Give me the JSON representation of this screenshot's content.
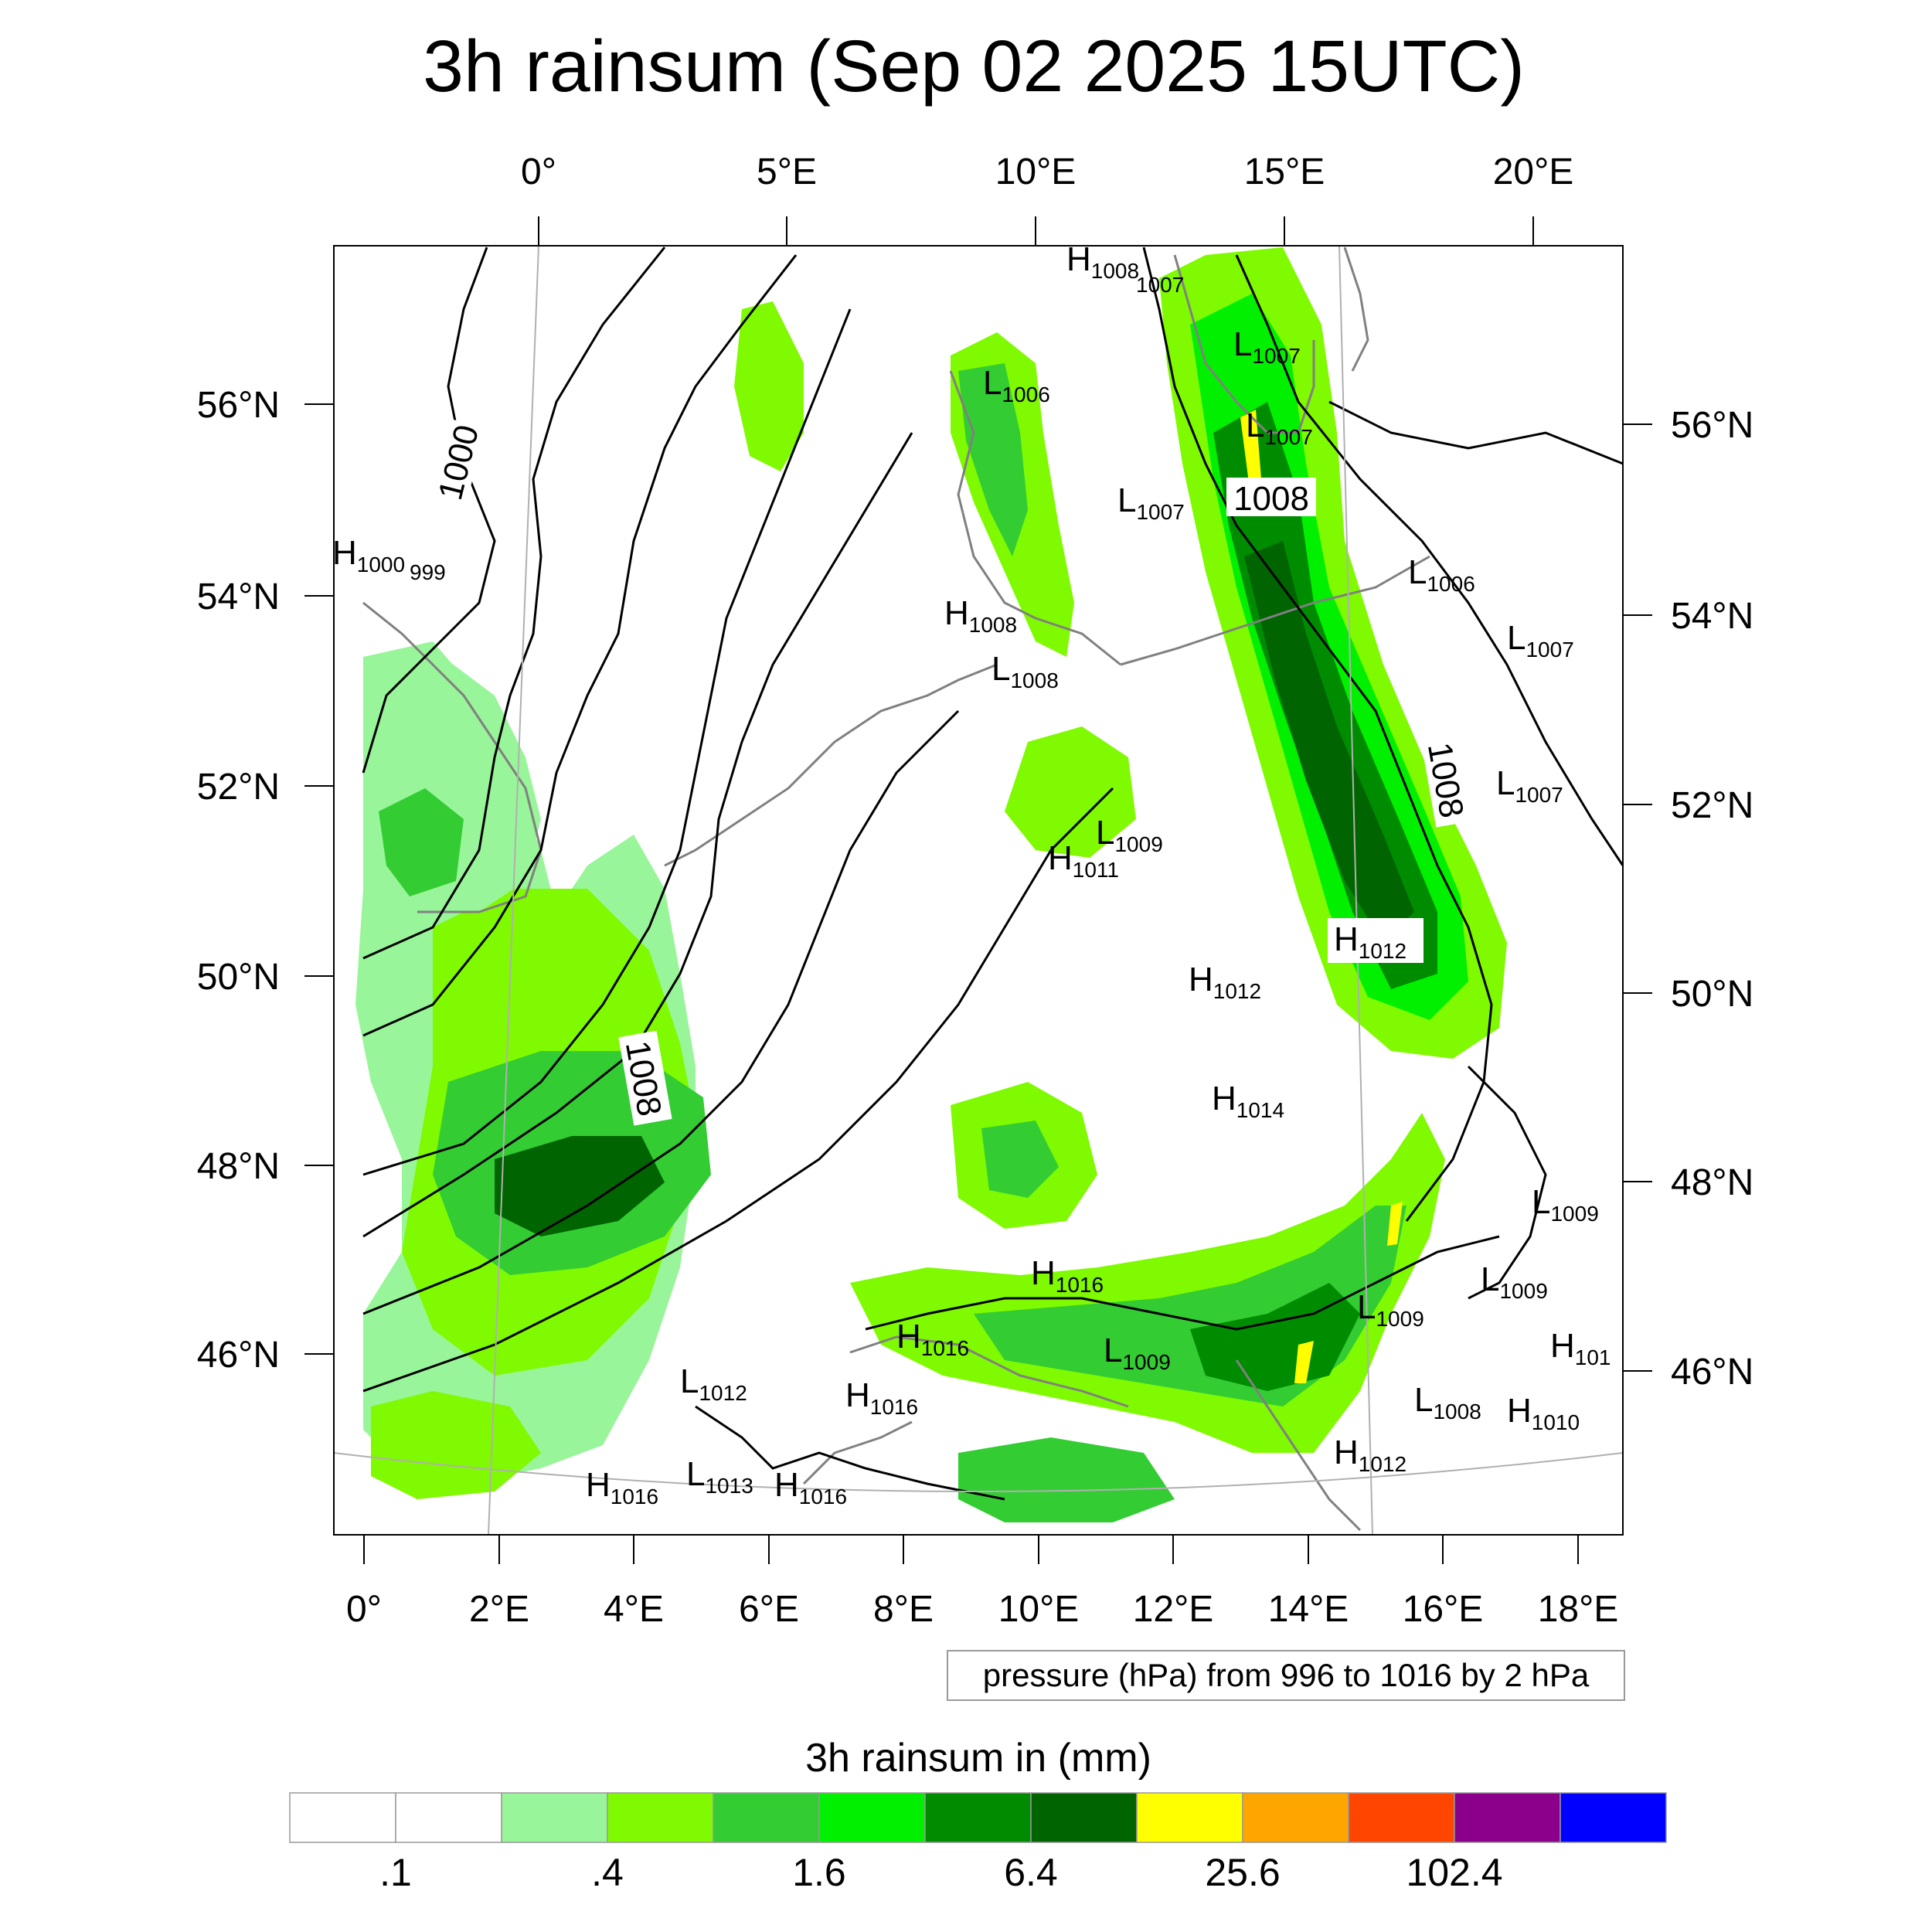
{
  "title": "3h rainsum (Sep 02 2025 15UTC)",
  "top_lon_labels": [
    "0°",
    "5°E",
    "10°E",
    "15°E",
    "20°E"
  ],
  "bottom_lon_labels": [
    "0°",
    "2°E",
    "4°E",
    "6°E",
    "8°E",
    "10°E",
    "12°E",
    "14°E",
    "16°E",
    "18°E"
  ],
  "left_lat_labels": [
    "56°N",
    "54°N",
    "52°N",
    "50°N",
    "48°N",
    "46°N"
  ],
  "right_lat_labels": [
    "56°N",
    "54°N",
    "52°N",
    "50°N",
    "48°N",
    "46°N"
  ],
  "contour_labels": [
    "1000",
    "1008",
    "1008",
    "1008"
  ],
  "pressure_centers": [
    {
      "t": "H",
      "v": "1008"
    },
    {
      "t": "",
      "v": "1007"
    },
    {
      "t": "L",
      "v": "1007"
    },
    {
      "t": "L",
      "v": "1006"
    },
    {
      "t": "L",
      "v": "1007"
    },
    {
      "t": "L",
      "v": "1007"
    },
    {
      "t": "H",
      "v": "1000"
    },
    {
      "t": "",
      "v": "999"
    },
    {
      "t": "L",
      "v": "1006"
    },
    {
      "t": "H",
      "v": "1008"
    },
    {
      "t": "L",
      "v": "1007"
    },
    {
      "t": "L",
      "v": "1008"
    },
    {
      "t": "L",
      "v": "1007"
    },
    {
      "t": "L",
      "v": "1009"
    },
    {
      "t": "H",
      "v": "1011"
    },
    {
      "t": "H",
      "v": "1012"
    },
    {
      "t": "H",
      "v": "1012"
    },
    {
      "t": "H",
      "v": "1014"
    },
    {
      "t": "L",
      "v": "1009"
    },
    {
      "t": "L",
      "v": "1009"
    },
    {
      "t": "H",
      "v": "1016"
    },
    {
      "t": "L",
      "v": "1009"
    },
    {
      "t": "H",
      "v": "1016"
    },
    {
      "t": "L",
      "v": "1009"
    },
    {
      "t": "H",
      "v": "101"
    },
    {
      "t": "L",
      "v": "1012"
    },
    {
      "t": "H",
      "v": "1016"
    },
    {
      "t": "L",
      "v": "1008"
    },
    {
      "t": "H",
      "v": "1010"
    },
    {
      "t": "H",
      "v": "1012"
    },
    {
      "t": "H",
      "v": "1016"
    },
    {
      "t": "L",
      "v": "1013"
    },
    {
      "t": "H",
      "v": "1016"
    }
  ],
  "contour_note": "pressure (hPa) from 996 to 1016 by 2 hPa",
  "colorbar": {
    "title": "3h rainsum in (mm)",
    "colors": [
      "#ffffff",
      "#ffffff",
      "#99f599",
      "#7ffa00",
      "#33cc33",
      "#00f000",
      "#008c00",
      "#006400",
      "#ffff00",
      "#ffa500",
      "#ff4500",
      "#8b008b",
      "#0000ff"
    ],
    "labels": [
      ".1",
      ".4",
      "1.6",
      "6.4",
      "25.6",
      "102.4"
    ]
  }
}
